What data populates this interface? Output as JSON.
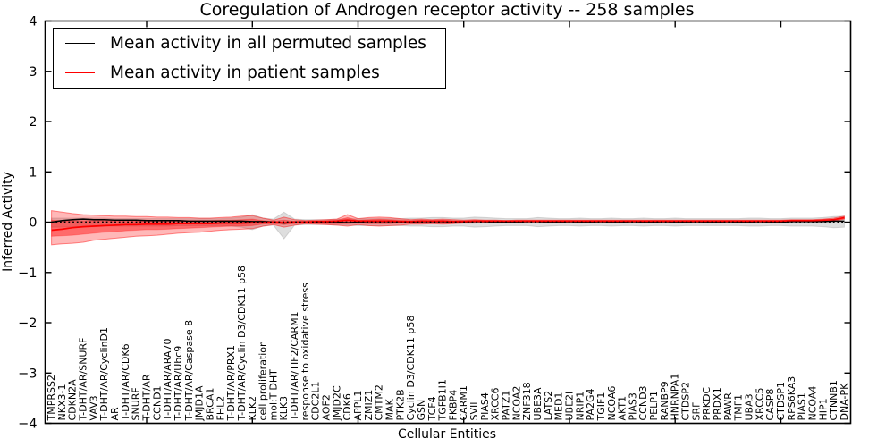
{
  "chart_data": {
    "type": "line",
    "title": "Coregulation of Androgen receptor activity -- 258 samples",
    "xlabel": "Cellular Entities",
    "ylabel": "Inferred Activity",
    "ylim": [
      -4,
      4
    ],
    "y_ticks": [
      4,
      3,
      2,
      1,
      0,
      -1,
      -2,
      -3,
      -4
    ],
    "grid": false,
    "legend_position": "upper left",
    "zero_line": {
      "style": "dotted",
      "color": "#000000",
      "y": 0
    },
    "categories": [
      "TMPRSS2",
      "NKX3-1",
      "CDKN2A",
      "T-DHT/AR/SNURF",
      "VAV3",
      "T-DHT/AR/CyclinD1",
      "AR",
      "T-DHT/AR/CDK6",
      "SNURF",
      "T-DHT/AR",
      "CCND1",
      "T-DHT/AR/ARA70",
      "T-DHT/AR/Ubc9",
      "T-DHT/AR/Caspase 8",
      "JMJD1A",
      "BRCA1",
      "FHL2",
      "T-DHT/AR/PRX1",
      "T-DHT/AR/Cyclin D3/CDK11 p58",
      "KLK2",
      "cell proliferation",
      "mol:T-DHT",
      "KLK3",
      "T-DHT/AR/TIF2/CARM1",
      "response to oxidative stress",
      "CDC2L1",
      "AOF2",
      "JMJD2C",
      "CDK6",
      "APPL1",
      "ZMIZ1",
      "CMTM2",
      "MAK",
      "PTK2B",
      "Cyclin D3/CDK11 p58",
      "GSN",
      "TCF4",
      "TGFB1I1",
      "FKBP4",
      "CARM1",
      "SVIL",
      "PIAS4",
      "XRCC6",
      "PATZ1",
      "NCOA2",
      "ZNF318",
      "UBE3A",
      "LATS2",
      "MED1",
      "UBE2I",
      "NRIP1",
      "PA2G4",
      "TGIF1",
      "NCOA6",
      "AKT1",
      "PIAS3",
      "CCND3",
      "PELP1",
      "RANBP9",
      "HNRNPA1",
      "CTDSP2",
      "SRF",
      "PRKDC",
      "PRDX1",
      "PAWR",
      "TMF1",
      "UBA3",
      "XRCC5",
      "CASP8",
      "CTDSP1",
      "RPS6KA3",
      "PIAS1",
      "NCOA4",
      "HIP1",
      "CTNNB1",
      "DNA-PK"
    ],
    "series": [
      {
        "name": "Mean activity in all permuted samples",
        "color": "#000000",
        "values": [
          0.0,
          0.03,
          0.05,
          0.06,
          0.05,
          0.05,
          0.04,
          0.04,
          0.04,
          0.03,
          0.03,
          0.03,
          0.03,
          0.02,
          0.02,
          0.02,
          0.02,
          0.02,
          0.02,
          0.01,
          0.01,
          0.0,
          -0.02,
          0.0,
          0.0,
          0.0,
          0.0,
          0.0,
          -0.01,
          0.0,
          0.01,
          0.01,
          0.01,
          0.0,
          0.0,
          0.01,
          0.01,
          0.01,
          0.0,
          0.0,
          0.01,
          0.01,
          0.0,
          0.0,
          0.0,
          0.01,
          0.01,
          0.0,
          0.0,
          0.01,
          0.0,
          0.0,
          0.01,
          0.0,
          0.0,
          0.01,
          0.0,
          0.0,
          0.01,
          0.0,
          0.0,
          0.01,
          0.0,
          0.0,
          0.01,
          0.0,
          0.0,
          0.01,
          0.0,
          0.0,
          0.01,
          0.01,
          0.01,
          0.01,
          0.02,
          0.02
        ]
      },
      {
        "name": "Mean activity in patient samples",
        "color": "#ff0000",
        "values": [
          -0.16,
          -0.14,
          -0.11,
          -0.09,
          -0.08,
          -0.07,
          -0.06,
          -0.05,
          -0.05,
          -0.04,
          -0.04,
          -0.04,
          -0.03,
          -0.03,
          -0.03,
          -0.03,
          -0.02,
          -0.02,
          -0.02,
          -0.01,
          -0.01,
          0.0,
          -0.01,
          0.0,
          0.0,
          0.01,
          0.01,
          0.02,
          0.04,
          0.02,
          0.02,
          0.02,
          0.02,
          0.01,
          0.01,
          0.02,
          0.02,
          0.02,
          0.01,
          0.01,
          0.02,
          0.02,
          0.02,
          0.02,
          0.02,
          0.02,
          0.02,
          0.02,
          0.02,
          0.02,
          0.02,
          0.02,
          0.02,
          0.02,
          0.02,
          0.02,
          0.02,
          0.02,
          0.02,
          0.02,
          0.02,
          0.02,
          0.02,
          0.02,
          0.02,
          0.02,
          0.02,
          0.02,
          0.02,
          0.02,
          0.03,
          0.03,
          0.03,
          0.04,
          0.05,
          0.09
        ]
      }
    ],
    "bands": [
      {
        "name": "permuted-range",
        "color": "#999999",
        "fill_opacity": 0.32,
        "edge_opacity": 0.35,
        "upper": [
          0.08,
          0.08,
          0.08,
          0.08,
          0.08,
          0.08,
          0.07,
          0.07,
          0.07,
          0.07,
          0.07,
          0.07,
          0.07,
          0.07,
          0.07,
          0.07,
          0.07,
          0.08,
          0.1,
          0.15,
          0.08,
          0.06,
          0.2,
          0.06,
          0.05,
          0.05,
          0.05,
          0.06,
          0.06,
          0.07,
          0.07,
          0.07,
          0.07,
          0.07,
          0.08,
          0.08,
          0.09,
          0.09,
          0.08,
          0.08,
          0.1,
          0.09,
          0.08,
          0.07,
          0.07,
          0.07,
          0.09,
          0.08,
          0.07,
          0.07,
          0.08,
          0.07,
          0.07,
          0.08,
          0.07,
          0.07,
          0.08,
          0.07,
          0.07,
          0.08,
          0.07,
          0.07,
          0.07,
          0.07,
          0.07,
          0.07,
          0.08,
          0.08,
          0.07,
          0.07,
          0.08,
          0.08,
          0.08,
          0.09,
          0.11,
          0.12
        ],
        "lower": [
          -0.1,
          -0.1,
          -0.09,
          -0.09,
          -0.09,
          -0.08,
          -0.08,
          -0.08,
          -0.08,
          -0.08,
          -0.08,
          -0.08,
          -0.07,
          -0.07,
          -0.07,
          -0.07,
          -0.07,
          -0.08,
          -0.1,
          -0.15,
          -0.08,
          -0.06,
          -0.33,
          -0.06,
          -0.05,
          -0.05,
          -0.05,
          -0.06,
          -0.06,
          -0.07,
          -0.07,
          -0.07,
          -0.07,
          -0.07,
          -0.08,
          -0.08,
          -0.09,
          -0.09,
          -0.08,
          -0.08,
          -0.1,
          -0.09,
          -0.08,
          -0.07,
          -0.07,
          -0.07,
          -0.09,
          -0.08,
          -0.07,
          -0.07,
          -0.08,
          -0.07,
          -0.07,
          -0.08,
          -0.07,
          -0.07,
          -0.08,
          -0.07,
          -0.07,
          -0.08,
          -0.07,
          -0.07,
          -0.07,
          -0.07,
          -0.07,
          -0.07,
          -0.08,
          -0.08,
          -0.07,
          -0.07,
          -0.08,
          -0.08,
          -0.08,
          -0.09,
          -0.11,
          -0.1
        ]
      },
      {
        "name": "patient-range-outer",
        "color": "#ff0000",
        "fill_opacity": 0.28,
        "edge_opacity": 0.45,
        "upper": [
          0.23,
          0.2,
          0.17,
          0.15,
          0.14,
          0.13,
          0.12,
          0.12,
          0.11,
          0.11,
          0.1,
          0.1,
          0.09,
          0.09,
          0.08,
          0.08,
          0.09,
          0.1,
          0.12,
          0.13,
          0.08,
          0.04,
          0.1,
          0.05,
          0.03,
          0.04,
          0.05,
          0.06,
          0.15,
          0.07,
          0.09,
          0.1,
          0.09,
          0.07,
          0.05,
          0.06,
          0.05,
          0.06,
          0.05,
          0.04,
          0.05,
          0.04,
          0.04,
          0.03,
          0.04,
          0.04,
          0.04,
          0.04,
          0.04,
          0.04,
          0.04,
          0.04,
          0.04,
          0.04,
          0.04,
          0.04,
          0.04,
          0.04,
          0.04,
          0.04,
          0.04,
          0.04,
          0.04,
          0.04,
          0.04,
          0.04,
          0.04,
          0.04,
          0.04,
          0.04,
          0.05,
          0.05,
          0.05,
          0.06,
          0.08,
          0.12
        ],
        "lower": [
          -0.45,
          -0.43,
          -0.42,
          -0.4,
          -0.36,
          -0.34,
          -0.32,
          -0.3,
          -0.28,
          -0.27,
          -0.26,
          -0.24,
          -0.22,
          -0.21,
          -0.2,
          -0.18,
          -0.16,
          -0.15,
          -0.14,
          -0.13,
          -0.08,
          -0.05,
          -0.1,
          -0.06,
          -0.03,
          -0.04,
          -0.05,
          -0.06,
          -0.08,
          -0.05,
          -0.07,
          -0.08,
          -0.07,
          -0.06,
          -0.04,
          -0.04,
          -0.03,
          -0.04,
          -0.03,
          -0.02,
          -0.02,
          -0.01,
          -0.01,
          0.0,
          0.0,
          0.0,
          0.0,
          0.0,
          0.0,
          0.0,
          0.0,
          0.0,
          0.0,
          0.0,
          0.0,
          0.0,
          0.0,
          0.0,
          0.0,
          0.0,
          0.0,
          0.0,
          0.0,
          0.0,
          0.0,
          0.0,
          0.0,
          0.0,
          0.0,
          0.0,
          0.01,
          0.01,
          0.01,
          0.01,
          0.02,
          0.06
        ]
      },
      {
        "name": "patient-range-inner",
        "color": "#ff0000",
        "fill_opacity": 0.42,
        "edge_opacity": 0.25,
        "upper": [
          0.04,
          0.03,
          0.03,
          0.03,
          0.03,
          0.03,
          0.03,
          0.04,
          0.03,
          0.04,
          0.03,
          0.03,
          0.03,
          0.03,
          0.03,
          0.03,
          0.04,
          0.04,
          0.05,
          0.06,
          0.03,
          0.02,
          0.04,
          0.02,
          0.02,
          0.02,
          0.03,
          0.04,
          0.09,
          0.04,
          0.05,
          0.06,
          0.05,
          0.04,
          0.03,
          0.04,
          0.03,
          0.04,
          0.03,
          0.03,
          0.03,
          0.03,
          0.03,
          0.03,
          0.03,
          0.03,
          0.03,
          0.03,
          0.03,
          0.03,
          0.03,
          0.03,
          0.03,
          0.03,
          0.03,
          0.03,
          0.03,
          0.03,
          0.03,
          0.03,
          0.03,
          0.03,
          0.03,
          0.03,
          0.03,
          0.03,
          0.03,
          0.03,
          0.03,
          0.03,
          0.03,
          0.03,
          0.04,
          0.04,
          0.05,
          0.1
        ],
        "lower": [
          -0.28,
          -0.27,
          -0.26,
          -0.24,
          -0.22,
          -0.2,
          -0.19,
          -0.17,
          -0.16,
          -0.15,
          -0.15,
          -0.14,
          -0.13,
          -0.12,
          -0.11,
          -0.1,
          -0.09,
          -0.08,
          -0.08,
          -0.07,
          -0.04,
          -0.03,
          -0.05,
          -0.03,
          -0.02,
          -0.02,
          -0.03,
          -0.03,
          -0.03,
          -0.02,
          -0.03,
          -0.03,
          -0.03,
          -0.02,
          -0.02,
          -0.01,
          -0.01,
          -0.01,
          -0.01,
          0.0,
          0.0,
          0.0,
          0.0,
          0.01,
          0.01,
          0.01,
          0.01,
          0.01,
          0.01,
          0.01,
          0.01,
          0.01,
          0.01,
          0.01,
          0.01,
          0.01,
          0.01,
          0.01,
          0.01,
          0.01,
          0.01,
          0.01,
          0.01,
          0.01,
          0.01,
          0.01,
          0.01,
          0.01,
          0.01,
          0.01,
          0.01,
          0.02,
          0.02,
          0.02,
          0.03,
          0.07
        ]
      }
    ]
  }
}
